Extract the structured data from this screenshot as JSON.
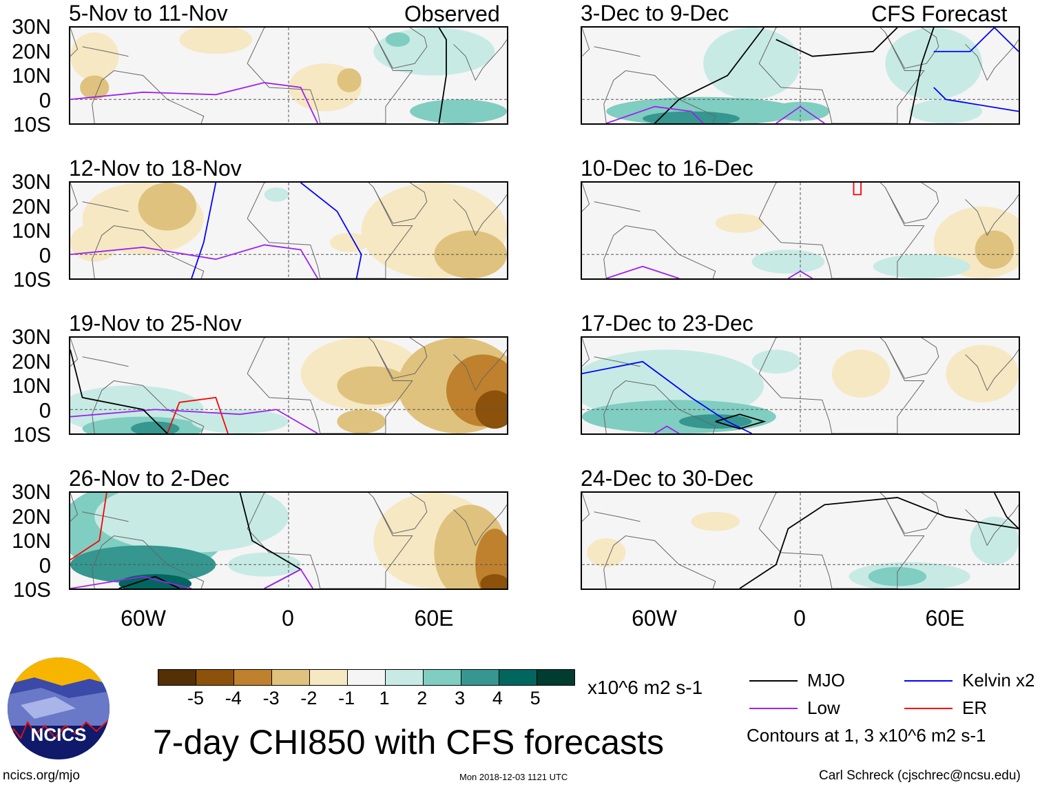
{
  "title": "7-day CHI850 with CFS forecasts",
  "column_labels": {
    "observed": "Observed",
    "forecast": "CFS Forecast"
  },
  "panels": [
    {
      "title": "5-Nov to 11-Nov"
    },
    {
      "title": "12-Nov to 18-Nov"
    },
    {
      "title": "19-Nov to 25-Nov"
    },
    {
      "title": "26-Nov to 2-Dec"
    },
    {
      "title": "3-Dec to 9-Dec"
    },
    {
      "title": "10-Dec to 16-Dec"
    },
    {
      "title": "17-Dec to 23-Dec"
    },
    {
      "title": "24-Dec to 30-Dec"
    }
  ],
  "y_labels": [
    "30N",
    "20N",
    "10N",
    "0",
    "10S"
  ],
  "x_labels": [
    "60W",
    "0",
    "60E"
  ],
  "colorbar": {
    "colors": [
      "#543005",
      "#8c510a",
      "#bf812d",
      "#dfc27d",
      "#f6e8c3",
      "#f5f5f5",
      "#c7eae5",
      "#80cdc1",
      "#35978f",
      "#01665e",
      "#003c30"
    ],
    "tick_labels": [
      "-5",
      "-4",
      "-3",
      "-2",
      "-1",
      "1",
      "2",
      "3",
      "4",
      "5"
    ],
    "units": "x10^6 m2 s-1"
  },
  "legend": {
    "items": [
      {
        "label": "MJO",
        "color": "#000000"
      },
      {
        "label": "Kelvin x2",
        "color": "#0000ff"
      },
      {
        "label": "Low",
        "color": "#a020f0"
      },
      {
        "label": "ER",
        "color": "#ff0000"
      }
    ],
    "note": "Contours at 1, 3 x10^6 m2 s-1"
  },
  "logo": {
    "text": "NCICS"
  },
  "footer": {
    "left": "ncics.org/mjo",
    "center": "Mon 2018-12-03 1121 UTC",
    "right": "Carl Schreck (cjschrec@ncsu.edu)"
  }
}
